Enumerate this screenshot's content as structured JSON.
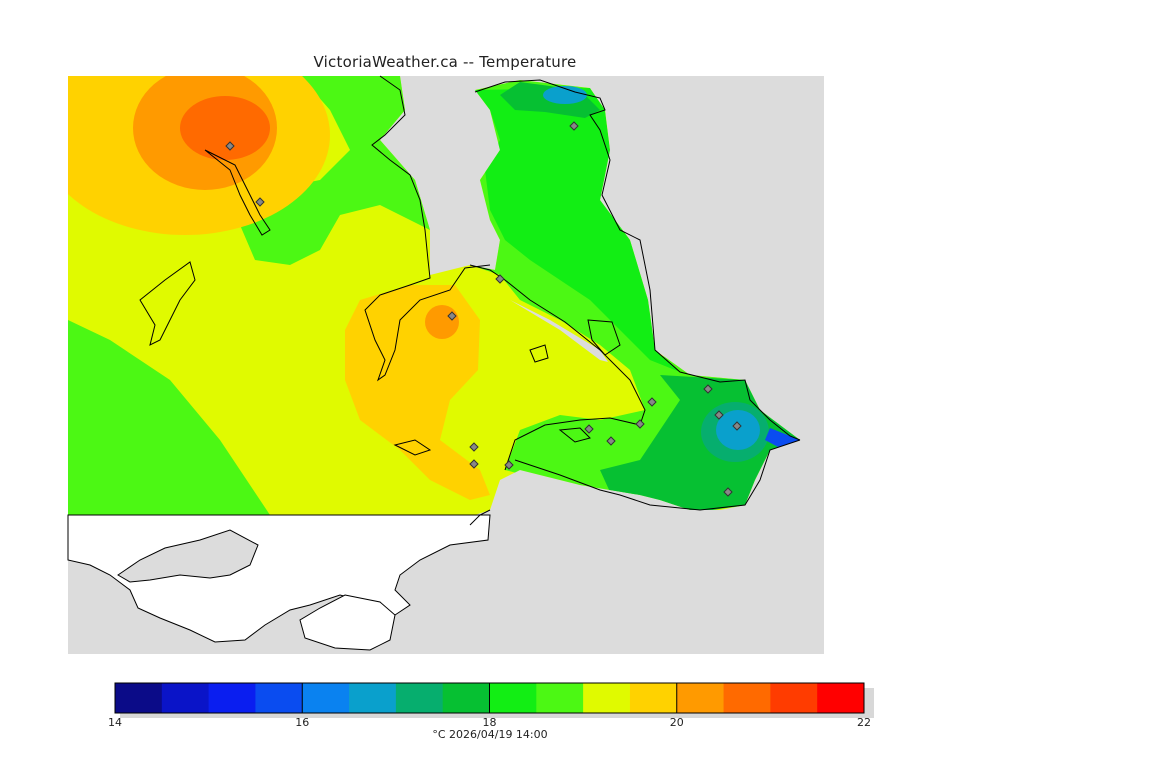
{
  "title": "VictoriaWeather.ca -- Temperature",
  "legend": {
    "colors": [
      "#0b0b88",
      "#0a14c8",
      "#0a1ef0",
      "#0a4cf0",
      "#0a82f0",
      "#0aa0cc",
      "#06ae6e",
      "#06c032",
      "#12ee14",
      "#4cf814",
      "#e0fa00",
      "#ffd200",
      "#ff9a00",
      "#ff6a00",
      "#ff3c00",
      "#ff0000"
    ],
    "ticks": [
      "14",
      "16",
      "18",
      "20",
      "22"
    ],
    "caption": "°C  2026/04/19 14:00"
  },
  "colors": {
    "land_out": "#dcdcdc",
    "land_nodata": "#ffffff",
    "t_19_19_5": "#e0fa00",
    "t_18_5_19": "#4cf814",
    "t_18_18_5": "#12ee14",
    "t_17_5_18": "#06c032",
    "t_17_17_5": "#06ae6e",
    "t_16_5_17": "#0aa0cc",
    "t_19_5_20": "#ffd200",
    "t_20_20_5": "#ff9a00",
    "t_20_5_21": "#ff6a00"
  }
}
